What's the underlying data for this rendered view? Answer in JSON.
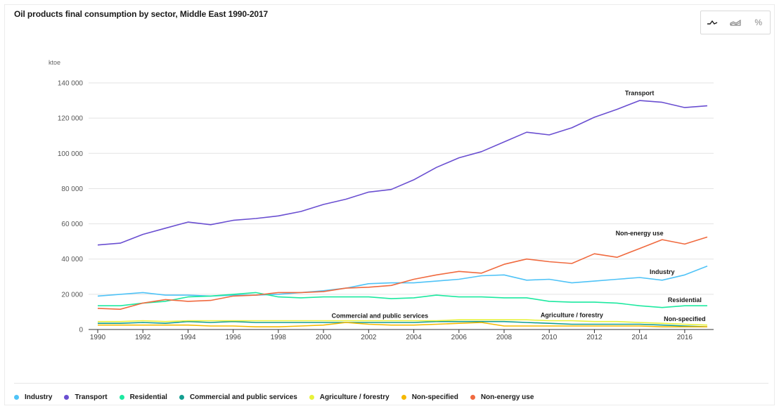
{
  "title": "Oil products final consumption by sector, Middle East 1990-2017",
  "toggles": [
    {
      "name": "line-chart-toggle",
      "icon": "line-chart-icon",
      "label": "",
      "active": true
    },
    {
      "name": "area-chart-toggle",
      "icon": "area-chart-icon",
      "label": "",
      "active": false
    },
    {
      "name": "percent-toggle",
      "icon": "percent-icon",
      "label": "%",
      "active": false
    }
  ],
  "chart_data": {
    "type": "line",
    "title": "Oil products final consumption by sector, Middle East 1990-2017",
    "ylabel": "ktoe",
    "ylim": [
      0,
      140000
    ],
    "yticks": [
      0,
      20000,
      40000,
      60000,
      80000,
      100000,
      120000,
      140000
    ],
    "ytick_labels": [
      "0",
      "20 000",
      "40 000",
      "60 000",
      "80 000",
      "100 000",
      "120 000",
      "140 000"
    ],
    "xlim": [
      1990,
      2017
    ],
    "xticks": [
      1990,
      1992,
      1994,
      1996,
      1998,
      2000,
      2002,
      2004,
      2006,
      2008,
      2010,
      2012,
      2014,
      2016
    ],
    "x": [
      1990,
      1991,
      1992,
      1993,
      1994,
      1995,
      1996,
      1997,
      1998,
      1999,
      2000,
      2001,
      2002,
      2003,
      2004,
      2005,
      2006,
      2007,
      2008,
      2009,
      2010,
      2011,
      2012,
      2013,
      2014,
      2015,
      2016,
      2017
    ],
    "grid": true,
    "legend": "bottom",
    "series": [
      {
        "name": "Industry",
        "color": "#4fc3f7",
        "values": [
          19000,
          20000,
          21000,
          19500,
          19500,
          19000,
          19500,
          19500,
          20000,
          21000,
          22000,
          23500,
          26000,
          26500,
          26500,
          27500,
          28500,
          30500,
          31000,
          28000,
          28500,
          26500,
          27500,
          28500,
          29500,
          28000,
          31000,
          36000
        ]
      },
      {
        "name": "Transport",
        "color": "#6a4fd1",
        "values": [
          48000,
          49000,
          54000,
          57500,
          61000,
          59500,
          62000,
          63000,
          64500,
          67000,
          71000,
          74000,
          78000,
          79500,
          85000,
          92000,
          97500,
          101000,
          106500,
          112000,
          110500,
          114500,
          120500,
          125000,
          130000,
          129000,
          126000,
          127000
        ]
      },
      {
        "name": "Residential",
        "color": "#1de9a0",
        "values": [
          13500,
          13500,
          15000,
          16000,
          18500,
          19000,
          20000,
          21000,
          18500,
          18000,
          18500,
          18500,
          18500,
          17500,
          18000,
          19500,
          18500,
          18500,
          18000,
          18000,
          16000,
          15500,
          15500,
          15000,
          13500,
          12500,
          13500,
          13500
        ]
      },
      {
        "name": "Commercial and public services",
        "color": "#139e90",
        "values": [
          3500,
          3500,
          4000,
          3500,
          4500,
          4000,
          4500,
          4000,
          4000,
          4000,
          4000,
          4000,
          4000,
          4000,
          4000,
          4500,
          4500,
          4500,
          4500,
          4000,
          3500,
          3000,
          3000,
          3000,
          3000,
          2500,
          2000,
          1500
        ]
      },
      {
        "name": "Agriculture / forestry",
        "color": "#e8f23a",
        "values": [
          4500,
          4500,
          5000,
          4500,
          5000,
          5000,
          5000,
          5000,
          5000,
          5000,
          5000,
          5000,
          5000,
          5000,
          5000,
          5000,
          5500,
          5500,
          5500,
          5500,
          5000,
          5000,
          4500,
          4500,
          4000,
          3500,
          3000,
          2500
        ]
      },
      {
        "name": "Non-specified",
        "color": "#f5b800",
        "values": [
          2500,
          2500,
          2500,
          2500,
          2500,
          2000,
          2000,
          1500,
          1500,
          2000,
          2500,
          4000,
          3000,
          2500,
          2500,
          3000,
          3500,
          4000,
          2000,
          2000,
          2000,
          2000,
          2000,
          2000,
          2000,
          1500,
          1500,
          1500
        ]
      },
      {
        "name": "Non-energy use",
        "color": "#f06a3f",
        "values": [
          12000,
          11500,
          15000,
          17000,
          16000,
          16500,
          19000,
          19500,
          21000,
          21000,
          21500,
          23500,
          24000,
          25000,
          28500,
          31000,
          33000,
          32000,
          37000,
          40000,
          38500,
          37500,
          43000,
          41000,
          46000,
          51000,
          48500,
          52500
        ]
      }
    ],
    "annotations": [
      {
        "text": "Transport",
        "x": 2014,
        "y": 133000
      },
      {
        "text": "Non-energy use",
        "x": 2014,
        "y": 53500
      },
      {
        "text": "Industry",
        "x": 2015,
        "y": 31500
      },
      {
        "text": "Residential",
        "x": 2016,
        "y": 15500
      },
      {
        "text": "Commercial and public services",
        "x": 2002.5,
        "y": 6500
      },
      {
        "text": "Agriculture / forestry",
        "x": 2011,
        "y": 7000
      },
      {
        "text": "Non-specified",
        "x": 2016,
        "y": 4800
      }
    ]
  },
  "legend_items": [
    {
      "label": "Industry",
      "color": "#4fc3f7"
    },
    {
      "label": "Transport",
      "color": "#6a4fd1"
    },
    {
      "label": "Residential",
      "color": "#1de9a0"
    },
    {
      "label": "Commercial and public services",
      "color": "#139e90"
    },
    {
      "label": "Agriculture / forestry",
      "color": "#e8f23a"
    },
    {
      "label": "Non-specified",
      "color": "#f5b800"
    },
    {
      "label": "Non-energy use",
      "color": "#f06a3f"
    }
  ]
}
